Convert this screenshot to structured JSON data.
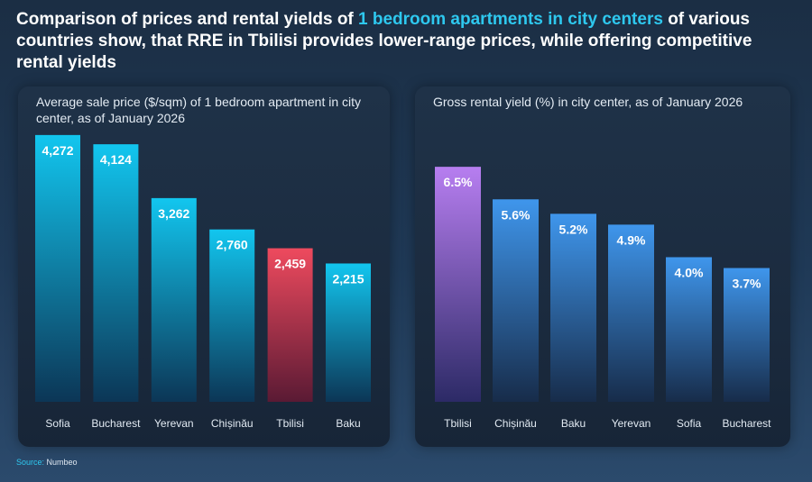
{
  "headline": {
    "part1": "Comparison of prices and rental yields of ",
    "highlight": "1 bedroom apartments in city centers",
    "part2": " of various countries show, that RRE in Tbilisi provides lower-range prices, while offering competitive rental yields"
  },
  "colors": {
    "cyan_top": "#12c6ef",
    "cyan_bottom": "#0c3656",
    "red_top": "#ee4a5e",
    "red_bottom": "#5a1a34",
    "blue_top": "#3f96ec",
    "blue_bottom": "#172c4a",
    "purple_top": "#b77ef0",
    "purple_bottom": "#2c2a66"
  },
  "chart_data": [
    {
      "type": "bar",
      "title": "Average sale price ($/sqm) of 1 bedroom apartment in city center, as of January 2026",
      "categories": [
        "Sofia",
        "Bucharest",
        "Yerevan",
        "Chișinău",
        "Tbilisi",
        "Baku"
      ],
      "values": [
        4272,
        4124,
        3262,
        2760,
        2459,
        2215
      ],
      "value_labels": [
        "4,272",
        "4,124",
        "3,262",
        "2,760",
        "2,459",
        "2,215"
      ],
      "highlight": "Tbilisi",
      "xlabel": "",
      "ylabel": "$/sqm",
      "ylim": [
        0,
        4400
      ],
      "grid": false,
      "legend": "none"
    },
    {
      "type": "bar",
      "title": "Gross rental yield (%) in city center, as of January 2026",
      "categories": [
        "Tbilisi",
        "Chișinău",
        "Baku",
        "Yerevan",
        "Sofia",
        "Bucharest"
      ],
      "values": [
        6.5,
        5.6,
        5.2,
        4.9,
        4.0,
        3.7
      ],
      "value_labels": [
        "6.5%",
        "5.6%",
        "5.2%",
        "4.9%",
        "4.0%",
        "3.7%"
      ],
      "highlight": "Tbilisi",
      "xlabel": "",
      "ylabel": "%",
      "ylim": [
        0,
        7.6
      ],
      "grid": false,
      "legend": "none"
    }
  ],
  "source": {
    "key": "Source:",
    "value": "Numbeo"
  }
}
